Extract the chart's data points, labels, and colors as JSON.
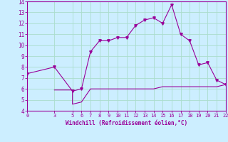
{
  "xlabel": "Windchill (Refroidissement éolien,°C)",
  "background_color": "#cceeff",
  "line_color": "#990099",
  "line1_x": [
    0,
    3,
    5,
    6,
    7,
    8,
    9,
    10,
    11,
    12,
    13,
    14,
    15,
    16,
    17,
    18,
    19,
    20,
    21,
    22
  ],
  "line1_y": [
    7.4,
    8.0,
    5.8,
    6.0,
    9.4,
    10.4,
    10.4,
    10.7,
    10.7,
    11.8,
    12.3,
    12.5,
    12.0,
    13.7,
    11.0,
    10.4,
    8.2,
    8.4,
    6.8,
    6.4
  ],
  "line2_x": [
    3,
    5,
    5,
    6,
    7,
    8,
    9,
    10,
    11,
    12,
    13,
    14,
    15,
    16,
    17,
    18,
    19,
    20,
    21,
    22
  ],
  "line2_y": [
    5.9,
    5.9,
    4.6,
    4.8,
    6.0,
    6.0,
    6.0,
    6.0,
    6.0,
    6.0,
    6.0,
    6.0,
    6.2,
    6.2,
    6.2,
    6.2,
    6.2,
    6.2,
    6.2,
    6.4
  ],
  "xlim": [
    0,
    22
  ],
  "ylim": [
    4,
    14
  ],
  "xticks": [
    0,
    3,
    5,
    6,
    7,
    8,
    9,
    10,
    11,
    12,
    13,
    14,
    15,
    16,
    17,
    18,
    19,
    20,
    21,
    22
  ],
  "yticks": [
    4,
    5,
    6,
    7,
    8,
    9,
    10,
    11,
    12,
    13,
    14
  ],
  "grid_color": "#aaddcc",
  "line_color2": "#990099",
  "tick_color": "#990099",
  "label_color": "#990099",
  "spine_color": "#990099"
}
